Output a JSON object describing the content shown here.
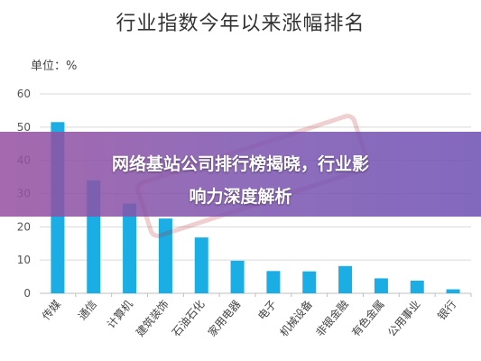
{
  "chart_data": {
    "type": "bar",
    "title": "行业指数今年以来涨幅排名",
    "unit_label": "单位：%",
    "categories": [
      "传媒",
      "通信",
      "计算机",
      "建筑装饰",
      "石油石化",
      "家用电器",
      "电子",
      "机械设备",
      "非银金融",
      "有色金属",
      "公用事业",
      "银行"
    ],
    "values": [
      51.5,
      34,
      27,
      22.5,
      16.8,
      9.8,
      6.7,
      6.6,
      8.2,
      4.5,
      3.8,
      1.2
    ],
    "ylim": [
      0,
      60
    ],
    "yticks": [
      0,
      10,
      20,
      30,
      40,
      50,
      60
    ],
    "grid": true,
    "bar_color": "#1aaee5"
  },
  "overlay": {
    "line1": "网络基站公司排行榜揭晓，行业影",
    "line2": "响力深度解析"
  },
  "watermark": {
    "color": "#b82828"
  }
}
